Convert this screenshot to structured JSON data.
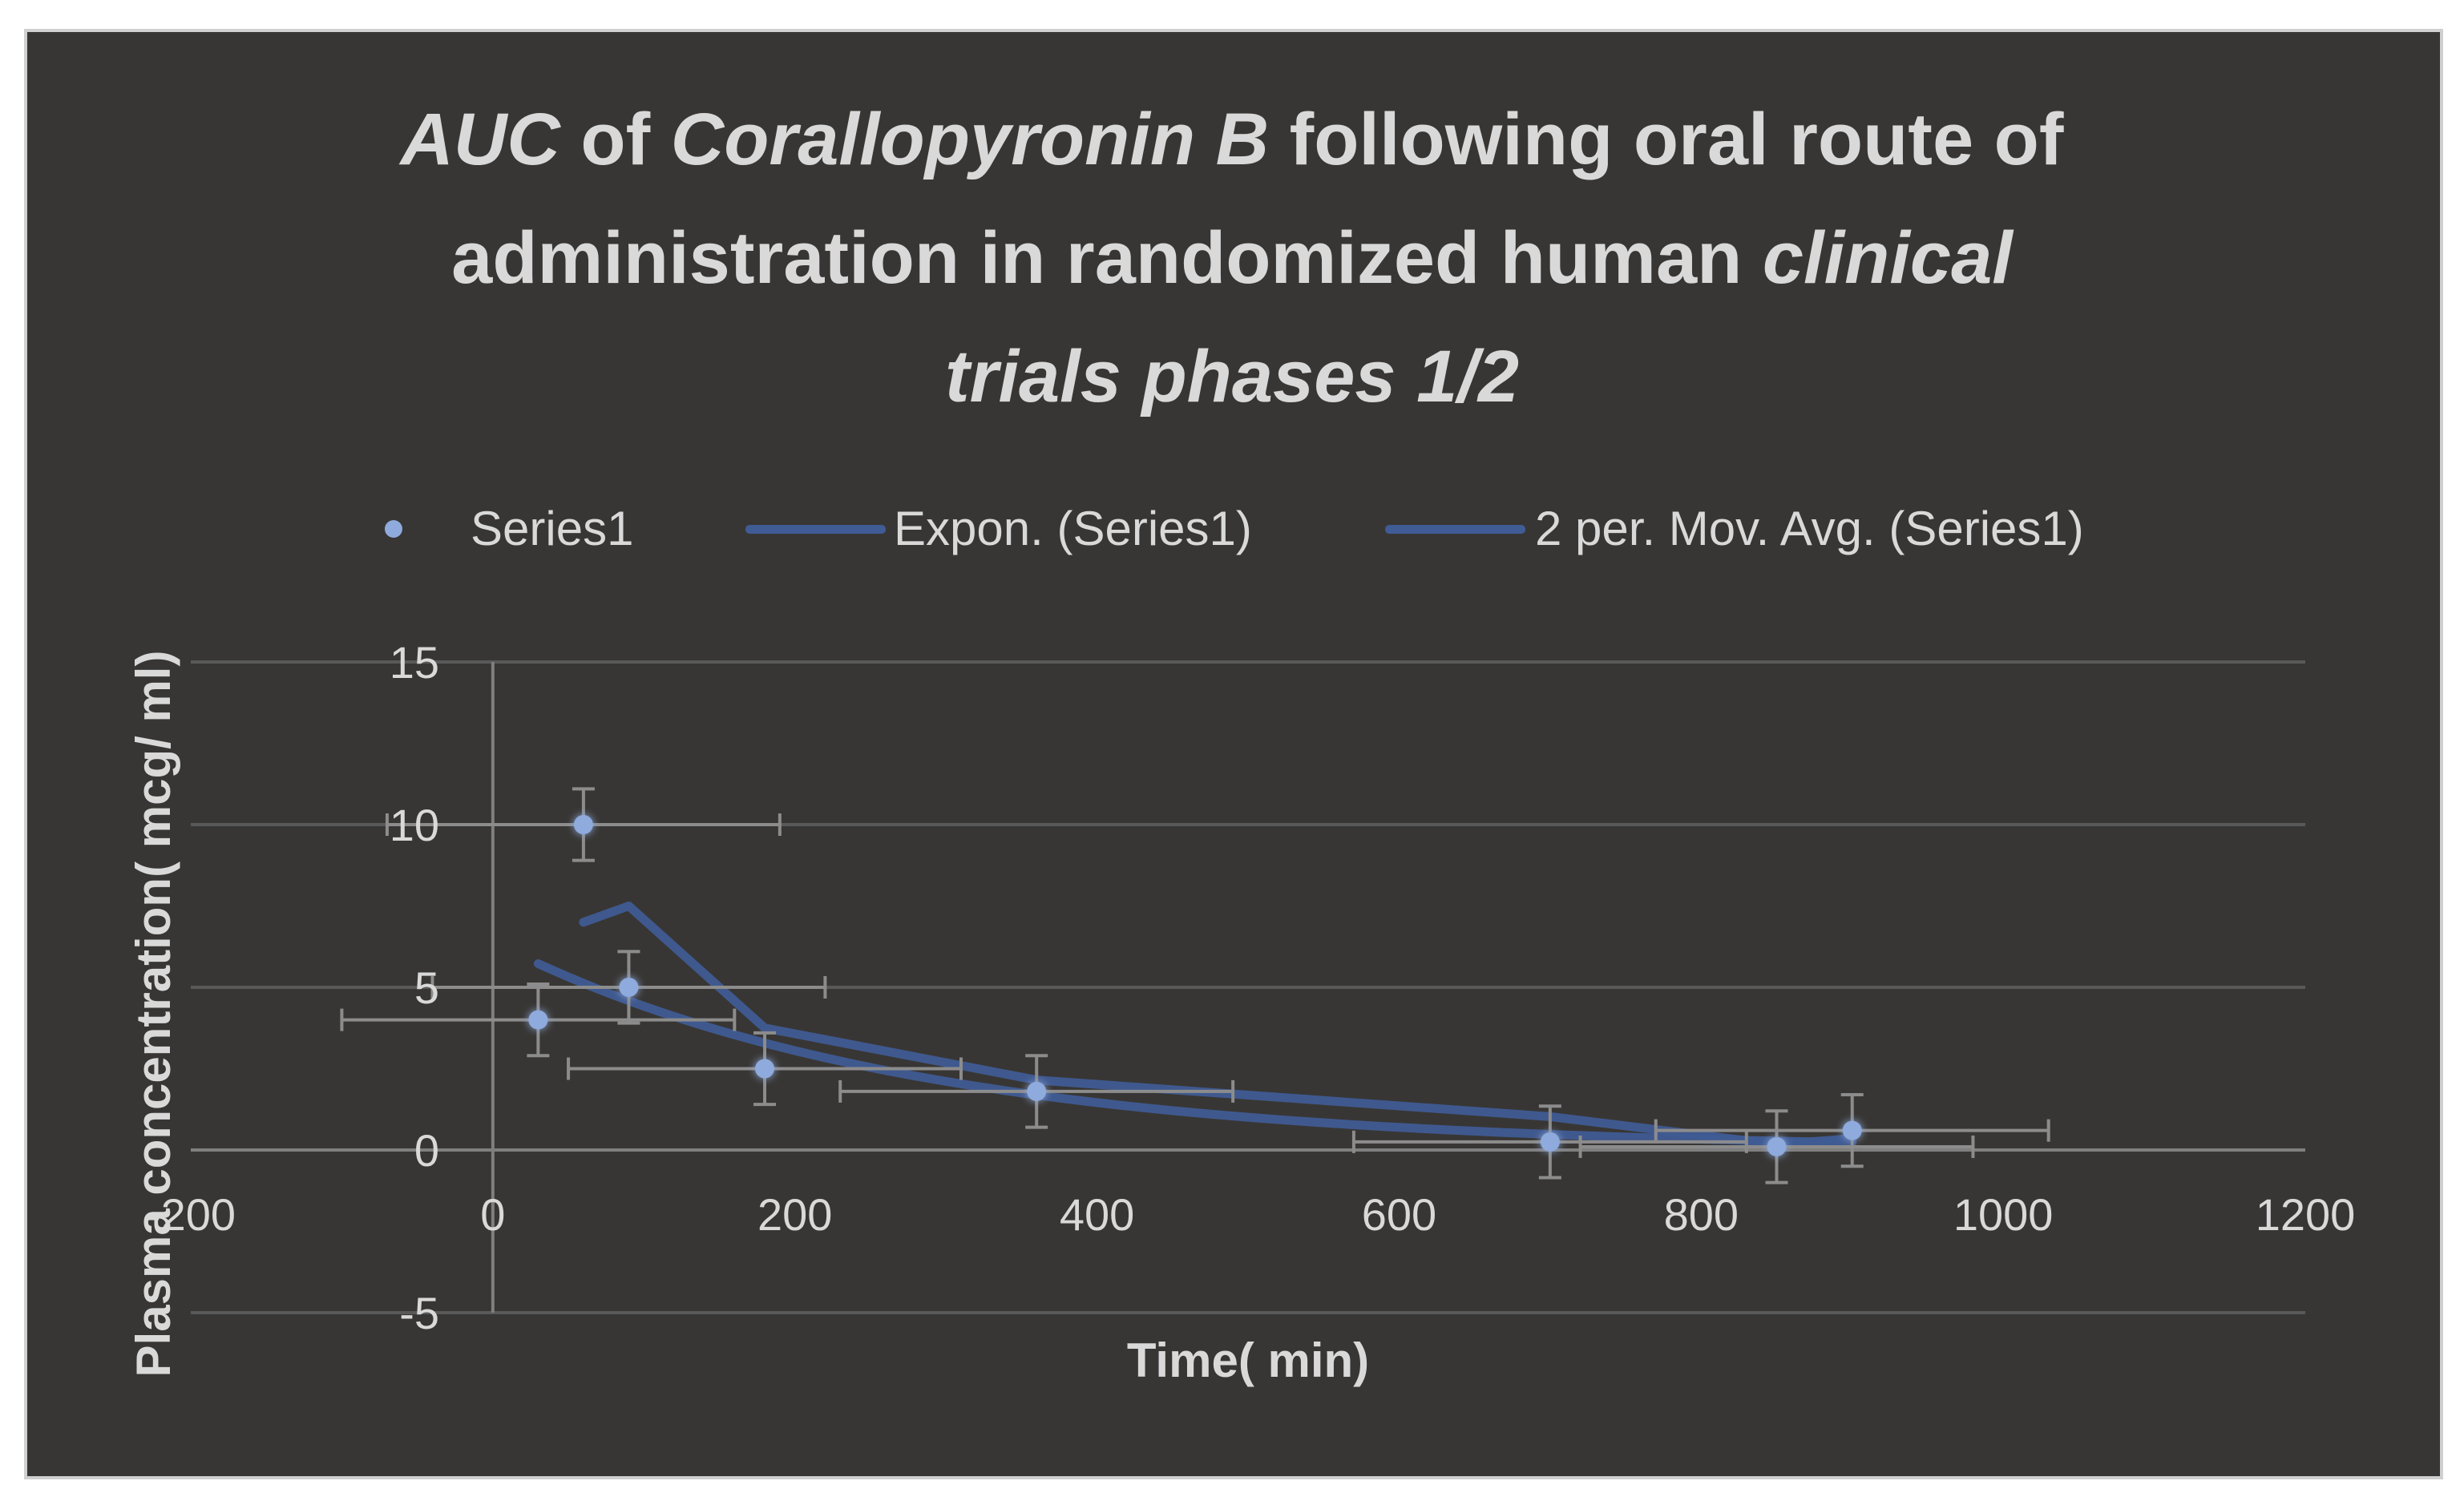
{
  "chart_data": {
    "type": "scatter",
    "title_parts": [
      {
        "text": "AUC",
        "italic": true
      },
      {
        "text": " of ",
        "italic": false
      },
      {
        "text": "Corallopyronin B",
        "italic": true
      },
      {
        "text": " following oral route of",
        "italic": false
      },
      {
        "br": true
      },
      {
        "text": "administration in randomized human ",
        "italic": false
      },
      {
        "text": "clinical",
        "italic": true
      },
      {
        "br": true
      },
      {
        "text": "trials phases 1/2",
        "italic": true
      }
    ],
    "xlabel": "Time( min)",
    "ylabel": "Plasma concentration( mcg/ ml)",
    "xlim": [
      -200,
      1200
    ],
    "ylim": [
      -5,
      15
    ],
    "xticks": [
      -200,
      0,
      200,
      400,
      600,
      800,
      1000,
      1200
    ],
    "yticks": [
      -5,
      0,
      5,
      10,
      15
    ],
    "xtick_labels": [
      "-200",
      "0",
      "200",
      "400",
      "600",
      "800",
      "1000",
      "1200"
    ],
    "ytick_labels": [
      "-5",
      "0",
      "5",
      "10",
      "15"
    ],
    "grid": true,
    "legend_position": "top",
    "legend": [
      "Series1",
      "Expon. (Series1)",
      "2 per. Mov. Avg. (Series1)"
    ],
    "series": [
      {
        "name": "Series1",
        "x": [
          30,
          60,
          90,
          180,
          360,
          700,
          850,
          900
        ],
        "y": [
          4,
          10,
          5,
          2.5,
          1.8,
          0.25,
          0.1,
          0.6
        ],
        "y_error": [
          1.1,
          1.1,
          1.1,
          1.1,
          1.1,
          1.1,
          1.1,
          1.1
        ],
        "x_error": [
          130,
          130,
          130,
          130,
          130,
          130,
          130,
          130
        ]
      }
    ],
    "trendlines": [
      {
        "name": "Expon. (Series1)",
        "type": "exponential",
        "a": 6.4,
        "b": -0.0037,
        "x_range": [
          30,
          900
        ]
      },
      {
        "name": "2 per. Mov. Avg. (Series1)",
        "type": "moving_average",
        "period": 2
      }
    ],
    "colors": {
      "marker": "#8faadc",
      "trendline": "#3f5c95",
      "grid": "#595959",
      "axis": "#7f7f7f",
      "error_bar": "#8c8c8c",
      "text": "#d9d9d9",
      "background": "#383634"
    }
  }
}
